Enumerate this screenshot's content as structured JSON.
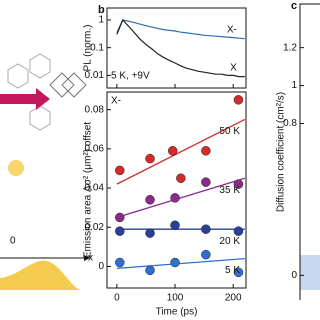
{
  "panel_a": {
    "labels": [
      "0",
      "x"
    ]
  },
  "chart_data": [
    {
      "type": "line",
      "panel": "b",
      "ylabel": "PL (norm.)",
      "log_y": true,
      "x": [
        0,
        10,
        20,
        30,
        40,
        50,
        60,
        70,
        80,
        90,
        100,
        110,
        120,
        130,
        140,
        150,
        160,
        170,
        180,
        190,
        200,
        210,
        220
      ],
      "series": [
        {
          "name": "X-",
          "color": "#2a6fb0",
          "values": [
            0.35,
            1.0,
            0.9,
            0.8,
            0.7,
            0.62,
            0.55,
            0.5,
            0.45,
            0.42,
            0.4,
            0.36,
            0.34,
            0.32,
            0.3,
            0.28,
            0.27,
            0.26,
            0.25,
            0.24,
            0.23,
            0.22,
            0.21
          ]
        },
        {
          "name": "X",
          "color": "#222222",
          "values": [
            0.3,
            1.0,
            0.6,
            0.35,
            0.2,
            0.13,
            0.09,
            0.06,
            0.045,
            0.035,
            0.028,
            0.022,
            0.018,
            0.016,
            0.014,
            0.013,
            0.012,
            0.011,
            0.011,
            0.01,
            0.01,
            0.009,
            0.009
          ]
        }
      ],
      "annotations": [
        "5 K, +9V"
      ],
      "xlim": [
        -17,
        222
      ],
      "xticks": [
        0,
        100,
        200
      ],
      "ylim": [
        0.0035,
        2.7
      ],
      "yticks": [
        1,
        0.1,
        0.01
      ]
    },
    {
      "type": "scatter",
      "xlabel": "Time (ps)",
      "ylabel": "Emission area Δσ² (μm²) offset",
      "annotations": [
        "X-"
      ],
      "xlim": [
        -17,
        222
      ],
      "xticks": [
        0,
        100,
        200
      ],
      "ylim": [
        -0.011,
        0.089
      ],
      "yticks": [
        0,
        0.02,
        0.04,
        0.06,
        0.08
      ],
      "series": [
        {
          "name": "50 K",
          "color": "#d42a2a",
          "x": [
            5,
            57,
            96,
            110,
            153,
            209
          ],
          "values": [
            0.049,
            0.055,
            0.059,
            0.045,
            0.059,
            0.085
          ],
          "fit_x": [
            0,
            220
          ],
          "fit_values": [
            0.042,
            0.075
          ]
        },
        {
          "name": "35 K",
          "color": "#8a2a8a",
          "x": [
            5,
            57,
            100,
            153,
            209
          ],
          "values": [
            0.025,
            0.034,
            0.035,
            0.043,
            0.042
          ],
          "fit_x": [
            0,
            220
          ],
          "fit_values": [
            0.025,
            0.045
          ]
        },
        {
          "name": "20 K",
          "color": "#2a3f9a",
          "x": [
            5,
            57,
            100,
            153,
            209
          ],
          "values": [
            0.018,
            0.017,
            0.021,
            0.019,
            0.018
          ],
          "fit_x": [
            0,
            220
          ],
          "fit_values": [
            0.019,
            0.019
          ]
        },
        {
          "name": "5 K",
          "color": "#2f6fd0",
          "x": [
            5,
            57,
            100,
            153,
            209
          ],
          "values": [
            0.002,
            -0.002,
            0.002,
            0.006,
            -0.003
          ],
          "fit_x": [
            0,
            220
          ],
          "fit_values": [
            -0.001,
            0.004
          ]
        }
      ]
    },
    {
      "type": "axis",
      "panel": "c",
      "ylabel": "Diffusion coefficient (cm²/s)",
      "ylim": [
        -0.13,
        1.43
      ],
      "yticks": [
        0,
        0.8,
        1.0,
        1.2
      ]
    }
  ]
}
